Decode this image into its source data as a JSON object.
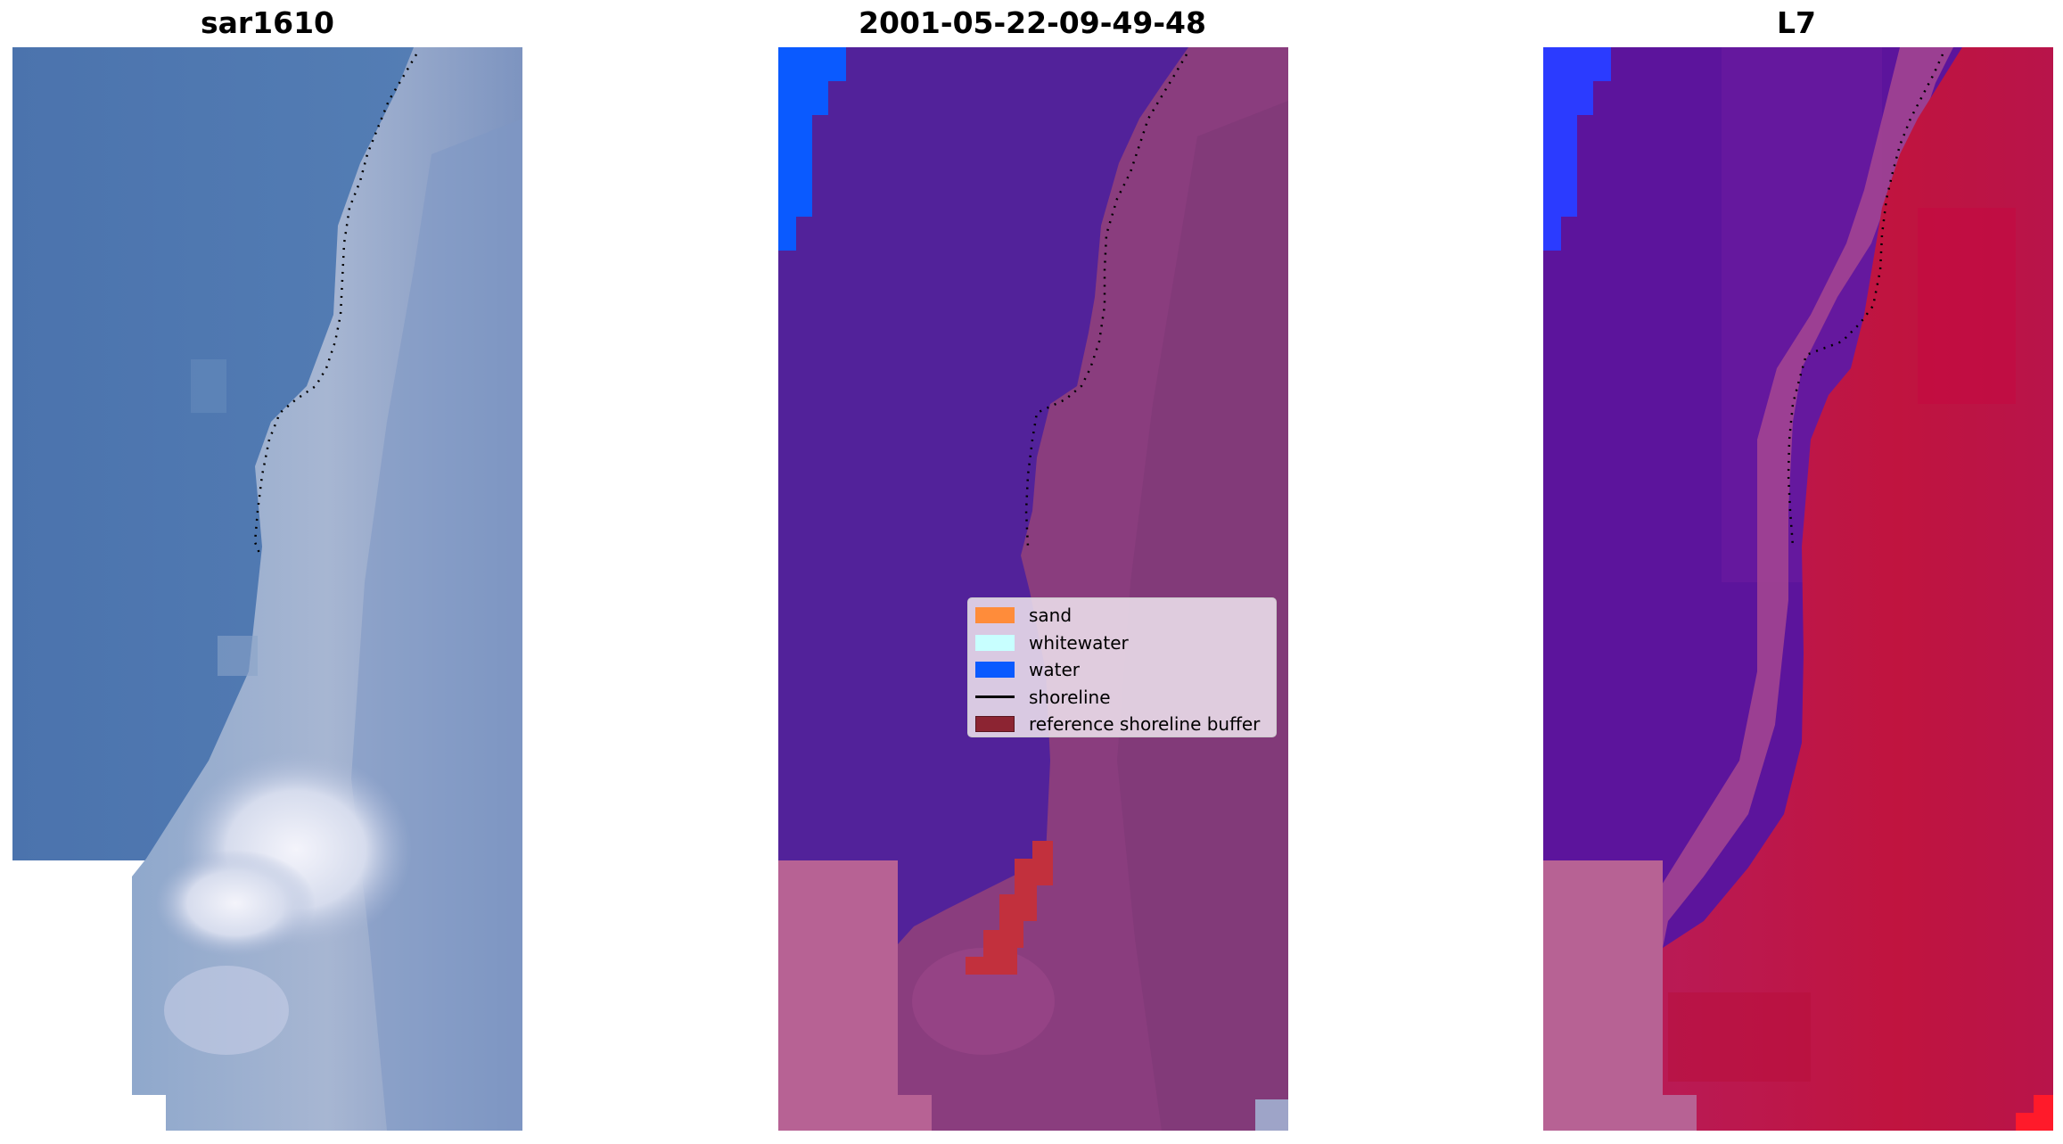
{
  "panels": [
    {
      "title": "sar1610"
    },
    {
      "title": "2001-05-22-09-49-48"
    },
    {
      "title": "L7"
    }
  ],
  "legend": {
    "items": [
      {
        "label": "sand",
        "color": "#ff8c3a",
        "kind": "patch"
      },
      {
        "label": "whitewater",
        "color": "#c8ffff",
        "kind": "patch"
      },
      {
        "label": "water",
        "color": "#0a5aff",
        "kind": "patch"
      },
      {
        "label": "shoreline",
        "color": "#000000",
        "kind": "line"
      },
      {
        "label": "reference shoreline buffer",
        "color": "#8c2432",
        "kind": "patch"
      }
    ]
  },
  "colors": {
    "rgb_water": "#4f78b0",
    "rgb_beach": "#a3b0cd",
    "rgb_whitewater": "#e9ecf6",
    "class_water": "#52229a",
    "class_land": "#8a3d7e",
    "class_buffer": "#c2303d",
    "nodata": "#b76294",
    "mndwi_water": "#5c149c",
    "mndwi_land": "#c0143f"
  }
}
